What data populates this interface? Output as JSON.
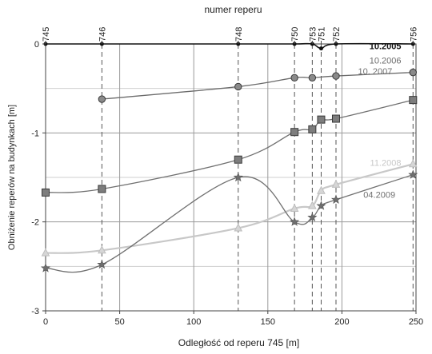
{
  "chart_data": {
    "type": "line",
    "title": "numer reperu",
    "xlabel": "Odległość od reperu 745 [m]",
    "ylabel": "Obniżenie reperów na budynkach [m]",
    "xlim": [
      0,
      250
    ],
    "ylim": [
      -3,
      0
    ],
    "x_ticks": [
      0,
      50,
      100,
      150,
      200,
      250
    ],
    "y_ticks": [
      0,
      -1,
      -2,
      -3
    ],
    "x_tick_labels": [
      "0",
      "50",
      "100",
      "150",
      "200",
      "250"
    ],
    "y_tick_labels": [
      "0",
      "-1",
      "-2",
      "-3"
    ],
    "grid": true,
    "benchmarks": [
      {
        "label": "745",
        "x": 0
      },
      {
        "label": "746",
        "x": 38
      },
      {
        "label": "748",
        "x": 130
      },
      {
        "label": "750",
        "x": 168
      },
      {
        "label": "753",
        "x": 180
      },
      {
        "label": "751",
        "x": 186
      },
      {
        "label": "752",
        "x": 196
      },
      {
        "label": "756",
        "x": 248
      }
    ],
    "series": [
      {
        "name": "10.2005",
        "color": "#111111",
        "marker": "none",
        "x": [
          0,
          38,
          130,
          168,
          180,
          186,
          196,
          248
        ],
        "y": [
          0,
          0,
          0,
          0,
          0,
          -0.05,
          0,
          0
        ]
      },
      {
        "name": "10.2006",
        "color": "#6b6b6b",
        "marker": "circle",
        "x": [
          38,
          130,
          168,
          180,
          196,
          248
        ],
        "y": [
          -0.62,
          -0.48,
          -0.38,
          -0.38,
          -0.36,
          -0.32
        ]
      },
      {
        "name": "10. 2007",
        "color": "#707070",
        "marker": "square",
        "x": [
          0,
          38,
          130,
          168,
          180,
          186,
          196,
          248
        ],
        "y": [
          -1.67,
          -1.63,
          -1.3,
          -0.99,
          -0.96,
          -0.85,
          -0.84,
          -0.63
        ]
      },
      {
        "name": "11.2008",
        "color": "#c8c8c8",
        "marker": "triangle",
        "x": [
          0,
          38,
          130,
          168,
          180,
          186,
          196,
          248
        ],
        "y": [
          -2.35,
          -2.32,
          -2.07,
          -1.85,
          -1.82,
          -1.65,
          -1.58,
          -1.35
        ]
      },
      {
        "name": "04.2009",
        "color": "#707070",
        "marker": "star",
        "x": [
          0,
          38,
          130,
          168,
          180,
          186,
          196,
          248
        ],
        "y": [
          -2.52,
          -2.48,
          -1.5,
          -2.0,
          -1.95,
          -1.82,
          -1.75,
          -1.47
        ]
      }
    ],
    "annotations": [
      {
        "text": "10.2005",
        "series": 0,
        "anchor_x": 240,
        "anchor_y": -0.06
      },
      {
        "text": "10.2006",
        "series": 1,
        "anchor_x": 240,
        "anchor_y": -0.22
      },
      {
        "text": "10. 2007",
        "series": 2,
        "anchor_x": 234,
        "anchor_y": -0.34
      },
      {
        "text": "11.2008",
        "series": 3,
        "anchor_x": 240,
        "anchor_y": -1.37
      },
      {
        "text": "04.2009",
        "series": 4,
        "anchor_x": 236,
        "anchor_y": -1.73
      }
    ]
  }
}
